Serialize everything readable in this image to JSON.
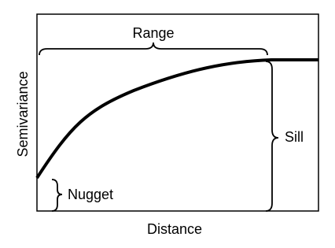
{
  "axes": {
    "y_label": "Semivariance",
    "x_label": "Distance"
  },
  "labels": {
    "range": "Range",
    "sill": "Sill",
    "nugget": "Nugget"
  }
}
